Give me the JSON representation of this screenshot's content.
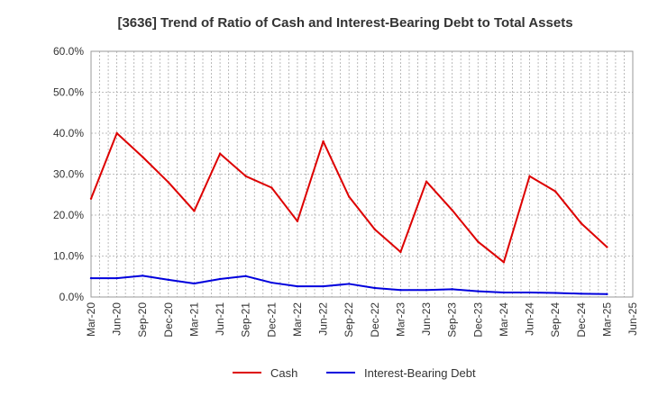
{
  "chart_data": {
    "type": "line",
    "title": "[3636]  Trend of Ratio of Cash and Interest-Bearing Debt to Total Assets",
    "xlabel": "",
    "ylabel": "",
    "ylim": [
      0,
      60
    ],
    "y_ticks": [
      "0.0%",
      "10.0%",
      "20.0%",
      "30.0%",
      "40.0%",
      "50.0%",
      "60.0%"
    ],
    "x_ticks": [
      "Mar-20",
      "Jun-20",
      "Sep-20",
      "Dec-20",
      "Mar-21",
      "Jun-21",
      "Sep-21",
      "Dec-21",
      "Mar-22",
      "Jun-22",
      "Sep-22",
      "Dec-22",
      "Mar-23",
      "Jun-23",
      "Sep-23",
      "Dec-23",
      "Mar-24",
      "Jun-24",
      "Sep-24",
      "Dec-24",
      "Mar-25",
      "Jun-25"
    ],
    "grid": true,
    "legend_position": "bottom",
    "series": [
      {
        "name": "Cash",
        "color": "#dd0000",
        "values": [
          24.0,
          40.0,
          34.2,
          28.0,
          21.0,
          35.0,
          29.5,
          26.7,
          18.5,
          38.0,
          24.5,
          16.5,
          11.0,
          28.2,
          21.2,
          13.5,
          8.5,
          29.5,
          25.8,
          18.0,
          12.2
        ]
      },
      {
        "name": "Interest-Bearing Debt",
        "color": "#0000dd",
        "values": [
          4.6,
          4.6,
          5.2,
          4.2,
          3.3,
          4.4,
          5.1,
          3.5,
          2.6,
          2.6,
          3.2,
          2.2,
          1.7,
          1.7,
          1.9,
          1.4,
          1.1,
          1.1,
          1.0,
          0.8,
          0.7
        ]
      }
    ]
  }
}
